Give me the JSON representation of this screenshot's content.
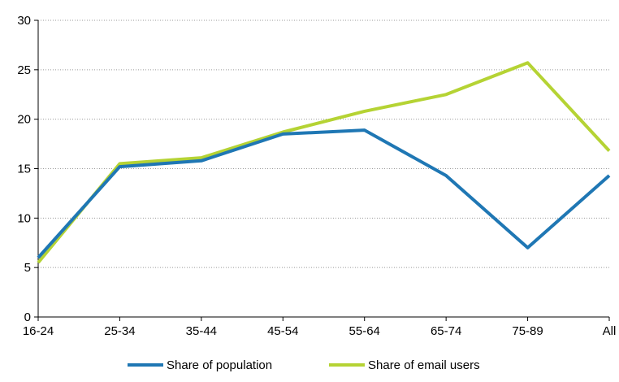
{
  "chart_data": {
    "type": "line",
    "title": "",
    "xlabel": "",
    "ylabel": "",
    "categories": [
      "16-24",
      "25-34",
      "35-44",
      "45-54",
      "55-64",
      "65-74",
      "75-89",
      "All"
    ],
    "yticks": [
      0,
      5,
      10,
      15,
      20,
      25,
      30
    ],
    "ylim": [
      0,
      30
    ],
    "grid": "horizontal dotted",
    "legend_position": "bottom",
    "series": [
      {
        "name": "Share of population",
        "color": "#1f77b4",
        "values": [
          6.0,
          15.2,
          15.8,
          18.5,
          18.9,
          14.3,
          7.0,
          14.3
        ]
      },
      {
        "name": "Share of email users",
        "color": "#b5d334",
        "values": [
          5.5,
          15.5,
          16.1,
          18.7,
          20.8,
          22.5,
          25.7,
          16.8
        ]
      }
    ]
  }
}
